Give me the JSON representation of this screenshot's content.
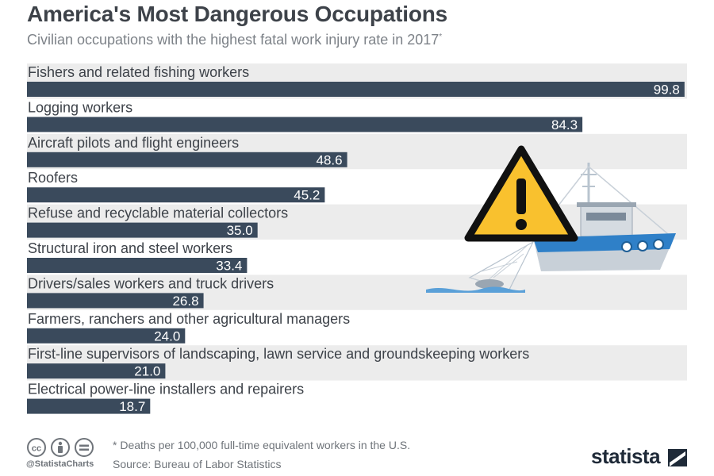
{
  "header": {
    "title": "America's Most Dangerous Occupations",
    "subtitle": "Civilian occupations with the highest fatal work injury rate in 2017",
    "subtitle_marker": "*"
  },
  "chart_data": {
    "type": "bar",
    "orientation": "horizontal",
    "title": "America's Most Dangerous Occupations",
    "subtitle": "Civilian occupations with the highest fatal work injury rate in 2017*",
    "categories": [
      "Fishers and related fishing workers",
      "Logging workers",
      "Aircraft pilots and flight engineers",
      "Roofers",
      "Refuse and recyclable material collectors",
      "Structural iron and steel workers",
      "Drivers/sales workers and truck drivers",
      "Farmers, ranchers and other agricultural managers",
      "First-line supervisors of landscaping, lawn service and groundskeeping workers",
      "Electrical power-line installers and repairers"
    ],
    "values": [
      99.8,
      84.3,
      48.6,
      45.2,
      35.0,
      33.4,
      26.8,
      24.0,
      21.0,
      18.7
    ],
    "value_labels": [
      "99.8",
      "84.3",
      "48.6",
      "45.2",
      "35.0",
      "33.4",
      "26.8",
      "24.0",
      "21.0",
      "18.7"
    ],
    "xlim": [
      0,
      100
    ],
    "grid": false,
    "legend": "none",
    "bar_color": "#3a4a5c",
    "band_color": "#ececec"
  },
  "footer": {
    "footnote": "* Deaths per 100,000 full-time equivalent workers in the U.S.",
    "source": "Source: Bureau of Labor Statistics",
    "handle": "@StatistaCharts",
    "brand": "statista"
  },
  "icons": {
    "cc": "creative-commons-icon",
    "by": "attribution-icon",
    "nd": "no-derivatives-icon",
    "warning": "warning-icon",
    "boat": "fishing-boat-icon"
  },
  "colors": {
    "warning_fill": "#f9c12e",
    "boat_blue": "#2f80c8"
  }
}
